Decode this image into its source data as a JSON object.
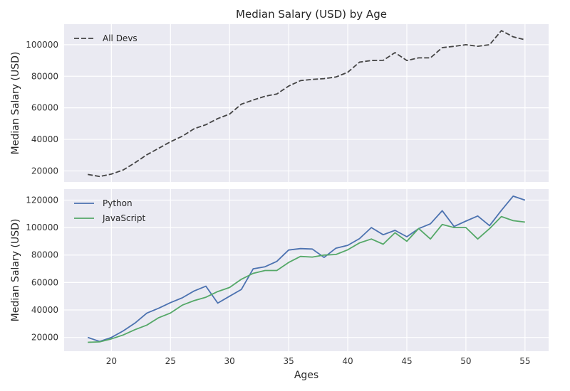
{
  "chart_data": [
    {
      "type": "line",
      "title": "Median Salary (USD) by Age",
      "xlabel": "",
      "ylabel": "Median Salary (USD)",
      "xlim": [
        16,
        57
      ],
      "ylim": [
        13000,
        113000
      ],
      "grid": true,
      "legend_position": "top-left",
      "x": [
        18,
        19,
        20,
        21,
        22,
        23,
        24,
        25,
        26,
        27,
        28,
        29,
        30,
        31,
        32,
        33,
        34,
        35,
        36,
        37,
        38,
        39,
        40,
        41,
        42,
        43,
        44,
        45,
        46,
        47,
        48,
        49,
        50,
        51,
        52,
        53,
        54,
        55
      ],
      "xticks": [
        20,
        25,
        30,
        35,
        40,
        45,
        50,
        55
      ],
      "yticks": [
        20000,
        40000,
        60000,
        80000,
        100000
      ],
      "series": [
        {
          "name": "All Devs",
          "color": "#444444",
          "dash": "dashed",
          "values": [
            17784,
            16500,
            18012,
            20628,
            25206,
            30252,
            34368,
            38496,
            42000,
            46752,
            49320,
            53200,
            56000,
            62316,
            64928,
            67317,
            68748,
            73752,
            77232,
            78000,
            78508,
            79536,
            82488,
            88935,
            90000,
            90056,
            95000,
            90000,
            91633,
            91660,
            98150,
            98964,
            100000,
            98988,
            100000,
            108923,
            105000,
            103117
          ]
        }
      ]
    },
    {
      "type": "line",
      "title": "",
      "xlabel": "Ages",
      "ylabel": "Median Salary (USD)",
      "xlim": [
        16,
        57
      ],
      "ylim": [
        10000,
        128000
      ],
      "grid": true,
      "legend_position": "top-left",
      "x": [
        18,
        19,
        20,
        21,
        22,
        23,
        24,
        25,
        26,
        27,
        28,
        29,
        30,
        31,
        32,
        33,
        34,
        35,
        36,
        37,
        38,
        39,
        40,
        41,
        42,
        43,
        44,
        45,
        46,
        47,
        48,
        49,
        50,
        51,
        52,
        53,
        54,
        55
      ],
      "xticks": [
        20,
        25,
        30,
        35,
        40,
        45,
        50,
        55
      ],
      "yticks": [
        20000,
        40000,
        60000,
        80000,
        100000,
        120000
      ],
      "series": [
        {
          "name": "Python",
          "color": "#4c72b0",
          "values": [
            20046,
            17100,
            20000,
            24744,
            30500,
            37732,
            41247,
            45372,
            48876,
            53850,
            57287,
            45000,
            50000,
            55000,
            70000,
            71496,
            75370,
            83640,
            84666,
            84392,
            78254,
            85000,
            87038,
            91991,
            100000,
            94796,
            97962,
            93302,
            99240,
            102736,
            112285,
            100771,
            104708,
            108423,
            101407,
            112542,
            122870,
            120000
          ]
        },
        {
          "name": "JavaScript",
          "color": "#55a868",
          "values": [
            16446,
            16791,
            18942,
            21780,
            25704,
            29000,
            34372,
            37810,
            43515,
            46823,
            49293,
            53437,
            56373,
            62375,
            66674,
            68745,
            68746,
            74583,
            79000,
            78508,
            79996,
            80403,
            83820,
            88833,
            91660,
            87892,
            96243,
            90000,
            99313,
            91660,
            102264,
            100000,
            100000,
            91660,
            99240,
            108000,
            105000,
            104000
          ]
        }
      ]
    }
  ]
}
